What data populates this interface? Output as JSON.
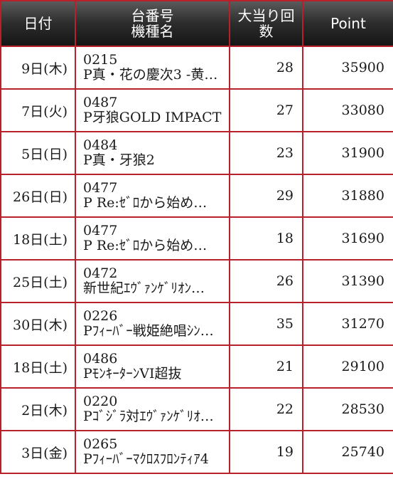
{
  "header": {
    "date": "日付",
    "machine_line1": "台番号",
    "machine_line2": "機種名",
    "hits_line1": "大当り回",
    "hits_line2": "数",
    "point": "Point"
  },
  "colors": {
    "header_bg": "#2c2c2c",
    "header_text": "#ffffff",
    "grid_border": "#b8202a",
    "row_bg": "#ffffff"
  },
  "rows": [
    {
      "date": "9日(木)",
      "number": "0215",
      "name": "P真・花の慶次3 -黄…",
      "hits": "28",
      "point": "35900"
    },
    {
      "date": "7日(火)",
      "number": "0487",
      "name": "P牙狼GOLD IMPACT",
      "hits": "27",
      "point": "33080"
    },
    {
      "date": "5日(日)",
      "number": "0484",
      "name": "P真・牙狼2",
      "hits": "23",
      "point": "31900"
    },
    {
      "date": "26日(日)",
      "number": "0477",
      "name": "P Re:ｾﾞﾛから始め…",
      "hits": "29",
      "point": "31880"
    },
    {
      "date": "18日(土)",
      "number": "0477",
      "name": "P Re:ｾﾞﾛから始め…",
      "hits": "18",
      "point": "31690"
    },
    {
      "date": "25日(土)",
      "number": "0472",
      "name": "新世紀ｴｳﾞｧﾝｹﾞﾘｵﾝ…",
      "hits": "26",
      "point": "31390"
    },
    {
      "date": "30日(木)",
      "number": "0226",
      "name": "Pﾌｨｰﾊﾞｰ戦姫絶唱ｼﾝ…",
      "hits": "35",
      "point": "31270"
    },
    {
      "date": "18日(土)",
      "number": "0486",
      "name": "PﾓﾝｷｰﾀｰﾝVI超抜",
      "hits": "21",
      "point": "29100"
    },
    {
      "date": "2日(木)",
      "number": "0220",
      "name": "Pｺﾞｼﾞﾗ対ｴｳﾞｧﾝｹﾞﾘｵ…",
      "hits": "22",
      "point": "28530"
    },
    {
      "date": "3日(金)",
      "number": "0265",
      "name": "Pﾌｨｰﾊﾞｰﾏｸﾛｽﾌﾛﾝﾃｨｱ4",
      "hits": "19",
      "point": "25740"
    }
  ]
}
